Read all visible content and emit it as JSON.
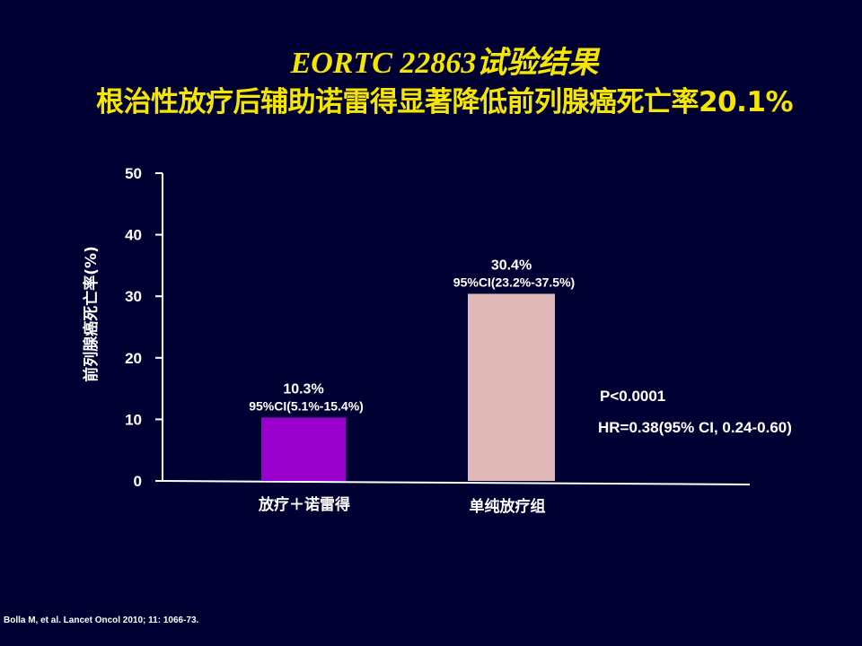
{
  "slide": {
    "title_line1": "EORTC 22863试验结果",
    "title_line2": "根治性放疗后辅助诺雷得显著降低前列腺癌死亡率20.1%",
    "reference": "Bolla M, et al. Lancet  Oncol 2010; 11: 1066-73."
  },
  "chart_data": {
    "type": "bar",
    "title": "",
    "xlabel": "",
    "ylabel": "前列腺癌死亡率(%)",
    "ylim": [
      0,
      50
    ],
    "yticks": [
      0,
      10,
      20,
      30,
      40,
      50
    ],
    "categories": [
      "放疗＋诺雷得",
      "单纯放疗组"
    ],
    "values": [
      10.3,
      30.4
    ],
    "value_labels": [
      "10.3%",
      "30.4%"
    ],
    "ci_labels": [
      "95%CI(5.1%-15.4%)",
      "95%CI(23.2%-37.5%)"
    ],
    "bar_colors": [
      "#9900CC",
      "#E0B8B8"
    ],
    "grid": false,
    "annotations": [
      "P<0.0001",
      "HR=0.38(95% CI, 0.24-0.60)"
    ]
  }
}
